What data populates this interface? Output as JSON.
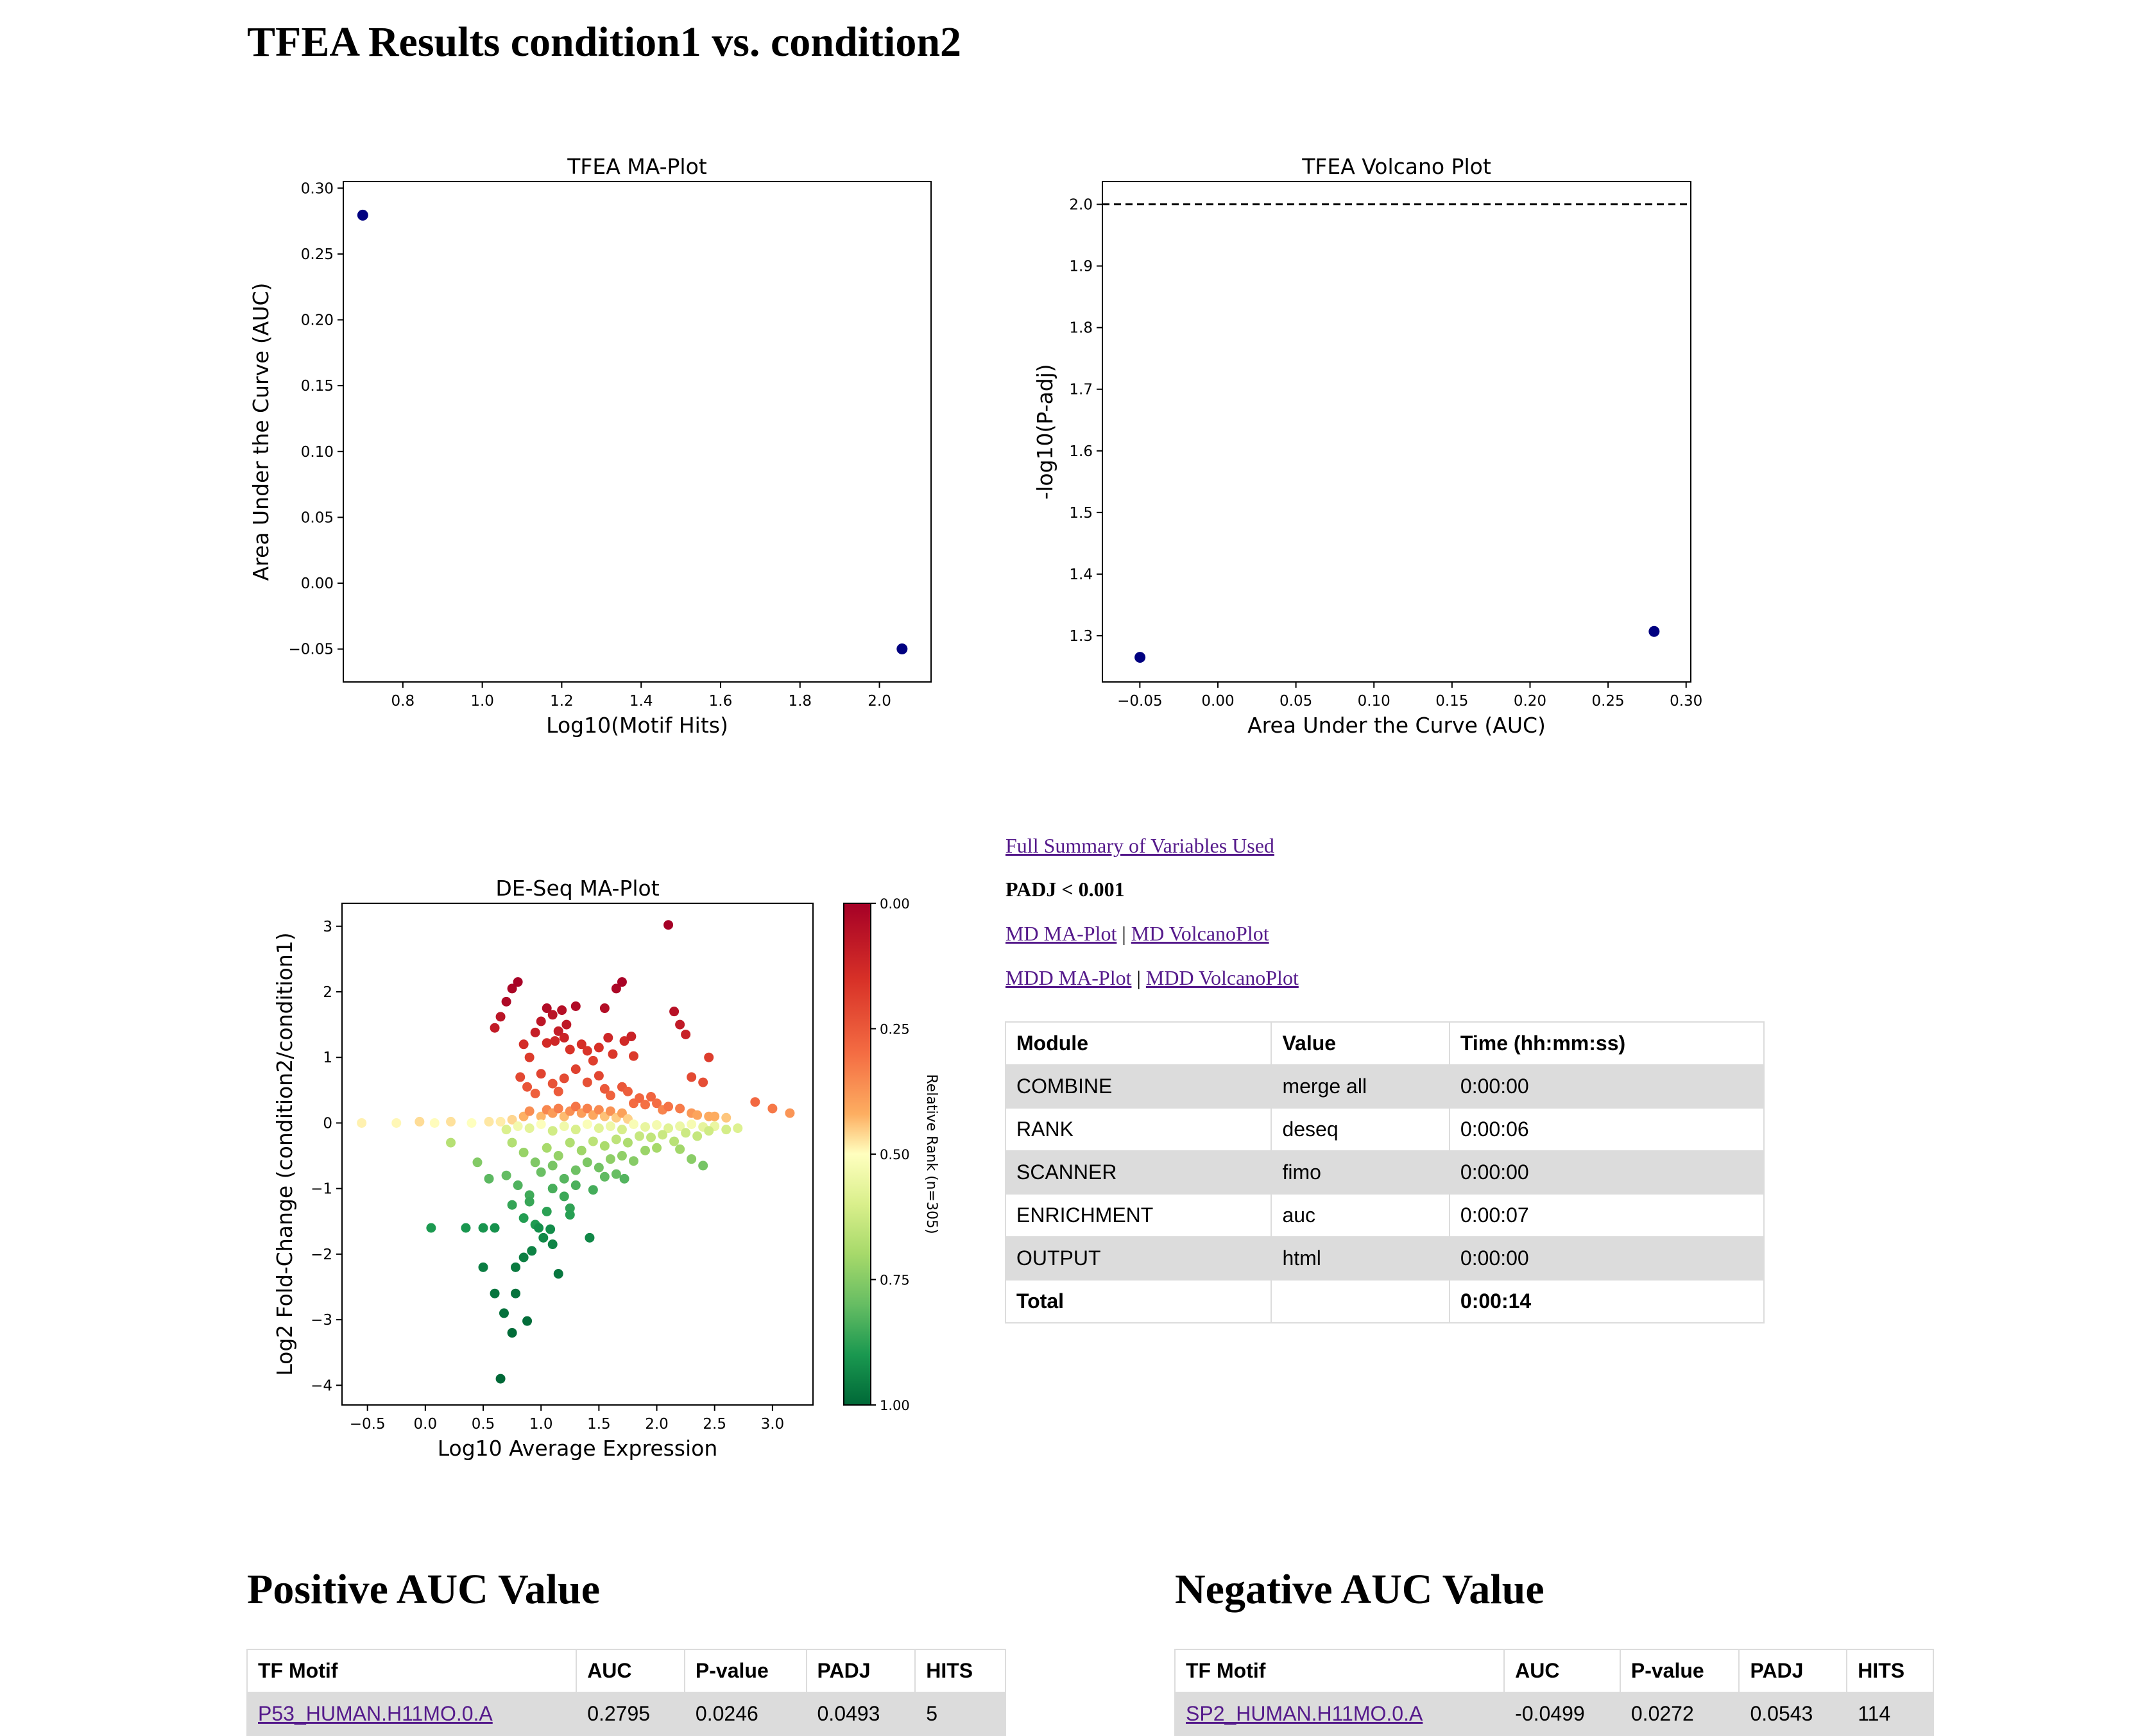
{
  "page_title": "TFEA Results condition1 vs. condition2",
  "ma_plot": {
    "chart_data": {
      "type": "scatter",
      "title": "TFEA MA-Plot",
      "xlabel": "Log10(Motif Hits)",
      "ylabel": "Area Under the Curve (AUC)",
      "xlim": [
        0.65,
        2.13
      ],
      "ylim": [
        -0.075,
        0.305
      ],
      "xticks": [
        "0.8",
        "1.0",
        "1.2",
        "1.4",
        "1.6",
        "1.8",
        "2.0"
      ],
      "xtick_values": [
        0.8,
        1.0,
        1.2,
        1.4,
        1.6,
        1.8,
        2.0
      ],
      "yticks": [
        "0.30",
        "0.25",
        "0.20",
        "0.15",
        "0.10",
        "0.05",
        "0.00",
        "−0.05"
      ],
      "ytick_values": [
        0.3,
        0.25,
        0.2,
        0.15,
        0.1,
        0.05,
        0.0,
        -0.05
      ],
      "points": [
        {
          "x": 0.699,
          "y": 0.2795
        },
        {
          "x": 2.057,
          "y": -0.0499
        }
      ],
      "color": "#000080"
    }
  },
  "volcano_plot": {
    "chart_data": {
      "type": "scatter",
      "title": "TFEA Volcano Plot",
      "xlabel": "Area Under the Curve (AUC)",
      "ylabel": "-log10(P-adj)",
      "xlim": [
        -0.074,
        0.303
      ],
      "ylim": [
        1.225,
        2.037
      ],
      "xticks": [
        "−0.05",
        "0.00",
        "0.05",
        "0.10",
        "0.15",
        "0.20",
        "0.25",
        "0.30"
      ],
      "xtick_values": [
        -0.05,
        0.0,
        0.05,
        0.1,
        0.15,
        0.2,
        0.25,
        0.3
      ],
      "yticks": [
        "2.0",
        "1.9",
        "1.8",
        "1.7",
        "1.6",
        "1.5",
        "1.4",
        "1.3"
      ],
      "ytick_values": [
        2.0,
        1.9,
        1.8,
        1.7,
        1.6,
        1.5,
        1.4,
        1.3
      ],
      "points": [
        {
          "x": -0.0499,
          "y": 1.265
        },
        {
          "x": 0.2795,
          "y": 1.307
        }
      ],
      "threshold_line_y": 2.0,
      "color": "#000080"
    }
  },
  "deseq_plot": {
    "chart_data": {
      "type": "scatter",
      "title": "DE-Seq MA-Plot",
      "xlabel": "Log10 Average Expression",
      "ylabel": "Log2 Fold-Change (condition2/condition1)",
      "colorbar_label": "Relative Rank (n=305)",
      "colorbar_ticks": [
        "0.00",
        "0.25",
        "0.50",
        "0.75",
        "1.00"
      ],
      "colorbar_tick_values": [
        0.0,
        0.25,
        0.5,
        0.75,
        1.0
      ],
      "xlim": [
        -0.72,
        3.35
      ],
      "ylim": [
        -4.3,
        3.35
      ],
      "xticks": [
        "−0.5",
        "0.0",
        "0.5",
        "1.0",
        "1.5",
        "2.0",
        "2.5",
        "3.0"
      ],
      "xtick_values": [
        -0.5,
        0.0,
        0.5,
        1.0,
        1.5,
        2.0,
        2.5,
        3.0
      ],
      "yticks": [
        "3",
        "2",
        "1",
        "0",
        "−1",
        "−2",
        "−3",
        "−4"
      ],
      "ytick_values": [
        3,
        2,
        1,
        0,
        -1,
        -2,
        -3,
        -4
      ],
      "points": [
        [
          -0.55,
          0.0
        ],
        [
          -0.25,
          0.0
        ],
        [
          -0.05,
          0.02
        ],
        [
          0.08,
          0.0
        ],
        [
          0.22,
          0.02
        ],
        [
          0.4,
          0.0
        ],
        [
          0.55,
          0.02
        ],
        [
          0.05,
          -1.6
        ],
        [
          0.35,
          -1.6
        ],
        [
          0.5,
          -1.6
        ],
        [
          0.6,
          -1.6
        ],
        [
          0.22,
          -0.3
        ],
        [
          0.45,
          -0.6
        ],
        [
          0.55,
          -0.85
        ],
        [
          0.6,
          1.45
        ],
        [
          0.65,
          1.62
        ],
        [
          0.7,
          1.85
        ],
        [
          0.75,
          2.05
        ],
        [
          0.8,
          2.15
        ],
        [
          0.85,
          1.2
        ],
        [
          0.9,
          1.0
        ],
        [
          0.95,
          1.38
        ],
        [
          1.0,
          1.55
        ],
        [
          1.05,
          1.22
        ],
        [
          1.1,
          1.65
        ],
        [
          1.15,
          1.4
        ],
        [
          1.2,
          1.3
        ],
        [
          1.25,
          1.12
        ],
        [
          0.82,
          0.7
        ],
        [
          0.88,
          0.55
        ],
        [
          0.95,
          0.45
        ],
        [
          1.0,
          0.75
        ],
        [
          1.1,
          0.6
        ],
        [
          1.15,
          0.48
        ],
        [
          1.2,
          0.68
        ],
        [
          1.05,
          1.75
        ],
        [
          1.12,
          1.25
        ],
        [
          1.18,
          1.72
        ],
        [
          1.22,
          1.5
        ],
        [
          1.3,
          1.78
        ],
        [
          1.35,
          1.2
        ],
        [
          1.4,
          1.1
        ],
        [
          1.45,
          0.95
        ],
        [
          1.5,
          1.15
        ],
        [
          1.55,
          1.75
        ],
        [
          1.58,
          1.3
        ],
        [
          1.62,
          1.05
        ],
        [
          1.65,
          2.05
        ],
        [
          1.7,
          2.15
        ],
        [
          1.72,
          1.25
        ],
        [
          1.78,
          1.32
        ],
        [
          1.8,
          1.02
        ],
        [
          2.1,
          3.02
        ],
        [
          2.15,
          1.7
        ],
        [
          2.2,
          1.5
        ],
        [
          2.25,
          1.35
        ],
        [
          2.3,
          0.7
        ],
        [
          2.4,
          0.62
        ],
        [
          2.45,
          1.0
        ],
        [
          2.85,
          0.32
        ],
        [
          3.0,
          0.22
        ],
        [
          3.15,
          0.15
        ],
        [
          1.3,
          0.82
        ],
        [
          1.4,
          0.62
        ],
        [
          1.5,
          0.72
        ],
        [
          1.55,
          0.52
        ],
        [
          1.6,
          0.42
        ],
        [
          1.7,
          0.55
        ],
        [
          1.75,
          0.48
        ],
        [
          1.8,
          0.3
        ],
        [
          1.85,
          0.38
        ],
        [
          1.9,
          0.28
        ],
        [
          1.95,
          0.4
        ],
        [
          2.0,
          0.3
        ],
        [
          2.05,
          0.2
        ],
        [
          2.1,
          0.25
        ],
        [
          2.2,
          0.22
        ],
        [
          2.3,
          0.15
        ],
        [
          2.35,
          0.12
        ],
        [
          2.45,
          0.1
        ],
        [
          2.5,
          0.1
        ],
        [
          2.6,
          0.08
        ],
        [
          0.75,
          0.05
        ],
        [
          0.85,
          0.1
        ],
        [
          0.9,
          0.18
        ],
        [
          1.0,
          0.1
        ],
        [
          1.05,
          0.2
        ],
        [
          1.1,
          0.15
        ],
        [
          1.15,
          0.22
        ],
        [
          1.2,
          0.1
        ],
        [
          1.25,
          0.18
        ],
        [
          1.3,
          0.25
        ],
        [
          1.35,
          0.15
        ],
        [
          1.4,
          0.22
        ],
        [
          1.45,
          0.12
        ],
        [
          1.5,
          0.2
        ],
        [
          1.55,
          0.1
        ],
        [
          1.6,
          0.18
        ],
        [
          1.65,
          0.08
        ],
        [
          1.7,
          0.15
        ],
        [
          1.75,
          0.06
        ],
        [
          0.65,
          0.02
        ],
        [
          0.7,
          -0.1
        ],
        [
          0.8,
          -0.05
        ],
        [
          0.9,
          -0.08
        ],
        [
          1.0,
          -0.02
        ],
        [
          1.1,
          -0.12
        ],
        [
          1.2,
          -0.05
        ],
        [
          1.3,
          -0.1
        ],
        [
          1.4,
          -0.02
        ],
        [
          1.5,
          -0.08
        ],
        [
          1.6,
          -0.05
        ],
        [
          1.7,
          -0.1
        ],
        [
          1.8,
          -0.02
        ],
        [
          1.9,
          -0.06
        ],
        [
          2.0,
          -0.03
        ],
        [
          2.1,
          -0.08
        ],
        [
          2.2,
          -0.05
        ],
        [
          2.3,
          -0.02
        ],
        [
          2.4,
          -0.06
        ],
        [
          2.5,
          -0.05
        ],
        [
          2.6,
          -0.1
        ],
        [
          2.7,
          -0.08
        ],
        [
          0.75,
          -0.3
        ],
        [
          0.85,
          -0.45
        ],
        [
          0.95,
          -0.6
        ],
        [
          1.05,
          -0.38
        ],
        [
          1.15,
          -0.5
        ],
        [
          1.25,
          -0.3
        ],
        [
          1.35,
          -0.42
        ],
        [
          1.45,
          -0.28
        ],
        [
          1.55,
          -0.35
        ],
        [
          1.65,
          -0.25
        ],
        [
          1.75,
          -0.3
        ],
        [
          1.85,
          -0.2
        ],
        [
          1.95,
          -0.22
        ],
        [
          2.05,
          -0.18
        ],
        [
          2.15,
          -0.28
        ],
        [
          2.25,
          -0.15
        ],
        [
          2.35,
          -0.2
        ],
        [
          2.45,
          -0.12
        ],
        [
          0.7,
          -0.8
        ],
        [
          0.8,
          -0.95
        ],
        [
          0.9,
          -1.1
        ],
        [
          1.0,
          -0.75
        ],
        [
          1.1,
          -0.65
        ],
        [
          1.2,
          -0.85
        ],
        [
          1.3,
          -0.72
        ],
        [
          1.4,
          -0.6
        ],
        [
          1.5,
          -0.68
        ],
        [
          1.6,
          -0.55
        ],
        [
          1.7,
          -0.5
        ],
        [
          1.8,
          -0.58
        ],
        [
          1.9,
          -0.42
        ],
        [
          2.0,
          -0.38
        ],
        [
          2.2,
          -0.4
        ],
        [
          2.4,
          -0.65
        ],
        [
          2.3,
          -0.55
        ],
        [
          0.75,
          -1.25
        ],
        [
          0.85,
          -1.45
        ],
        [
          0.9,
          -1.2
        ],
        [
          0.95,
          -1.55
        ],
        [
          1.05,
          -1.35
        ],
        [
          1.1,
          -1.0
        ],
        [
          1.2,
          -1.12
        ],
        [
          1.25,
          -1.3
        ],
        [
          1.3,
          -0.95
        ],
        [
          1.45,
          -1.02
        ],
        [
          1.55,
          -0.82
        ],
        [
          1.65,
          -0.78
        ],
        [
          1.72,
          -0.85
        ],
        [
          0.6,
          -2.6
        ],
        [
          0.68,
          -2.9
        ],
        [
          0.75,
          -3.2
        ],
        [
          0.88,
          -3.02
        ],
        [
          0.5,
          -2.2
        ],
        [
          0.78,
          -2.2
        ],
        [
          0.85,
          -2.05
        ],
        [
          0.92,
          -1.95
        ],
        [
          1.02,
          -1.75
        ],
        [
          1.1,
          -1.85
        ],
        [
          1.15,
          -2.3
        ],
        [
          1.25,
          -1.4
        ],
        [
          1.42,
          -1.75
        ],
        [
          0.78,
          -2.6
        ],
        [
          0.65,
          -3.9
        ],
        [
          0.98,
          -1.6
        ],
        [
          1.08,
          -1.62
        ]
      ]
    }
  },
  "summary_links": {
    "full_summary": "Full Summary of Variables Used",
    "padj_label": "PADJ < 0.001",
    "md_ma": "MD MA-Plot",
    "md_volcano": "MD VolcanoPlot",
    "mdd_ma": "MDD MA-Plot",
    "mdd_volcano": "MDD VolcanoPlot",
    "separator": "|"
  },
  "module_table": {
    "headers": [
      "Module",
      "Value",
      "Time (hh:mm:ss)"
    ],
    "rows": [
      [
        "COMBINE",
        "merge all",
        "0:00:00"
      ],
      [
        "RANK",
        "deseq",
        "0:00:06"
      ],
      [
        "SCANNER",
        "fimo",
        "0:00:00"
      ],
      [
        "ENRICHMENT",
        "auc",
        "0:00:07"
      ],
      [
        "OUTPUT",
        "html",
        "0:00:00"
      ],
      [
        "Total",
        "",
        "0:00:14"
      ]
    ]
  },
  "positive": {
    "heading": "Positive AUC Value",
    "headers": [
      "TF Motif",
      "AUC",
      "P-value",
      "PADJ",
      "HITS"
    ],
    "rows": [
      [
        "P53_HUMAN.H11MO.0.A",
        "0.2795",
        "0.0246",
        "0.0493",
        "5"
      ]
    ]
  },
  "negative": {
    "heading": "Negative AUC Value",
    "headers": [
      "TF Motif",
      "AUC",
      "P-value",
      "PADJ",
      "HITS"
    ],
    "rows": [
      [
        "SP2_HUMAN.H11MO.0.A",
        "-0.0499",
        "0.0272",
        "0.0543",
        "114"
      ]
    ]
  },
  "colors": {
    "link": "#551a8b",
    "marker": "#000080",
    "row_shade": "#dcdcdc"
  }
}
